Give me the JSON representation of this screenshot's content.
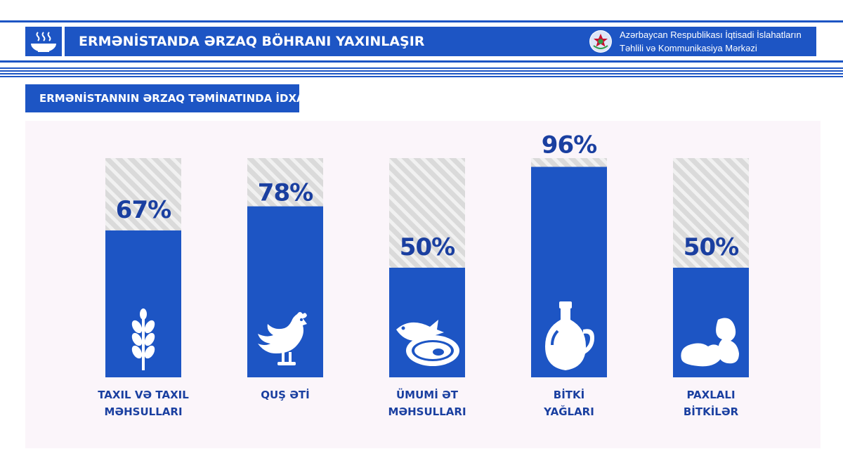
{
  "header": {
    "title": "ERMƏNİSTANDA ƏRZAQ BÖHRANI YAXINLAŞIR",
    "org_line1": "Azərbaycan Respublikası İqtisadi İslahatların",
    "org_line2": "Təhlili və Kommunikasiya Mərkəzi",
    "icon": "food-bowl-icon"
  },
  "colors": {
    "accent": "#1d55c4",
    "text": "#1a3fa0",
    "empty": "#dadada",
    "panel": "#fbf5fa"
  },
  "chart_data": {
    "type": "bar",
    "title": "ERMƏNİSTANNIN ƏRZAQ TƏMİNATINDA İDXALIN PAYI",
    "categories": [
      [
        "TAXIL VƏ TAXIL",
        "MƏHSULLARI"
      ],
      [
        "QUŞ ƏTİ"
      ],
      [
        "ÜMUMİ ƏT",
        "MƏHSULLARI"
      ],
      [
        "BİTKİ",
        "YAĞLARI"
      ],
      [
        "PAXLALI",
        "BİTKİLƏR"
      ]
    ],
    "values": [
      67,
      78,
      50,
      96,
      50
    ],
    "value_labels": [
      "67%",
      "78%",
      "50%",
      "96%",
      "50%"
    ],
    "icons": [
      "wheat-icon",
      "chicken-icon",
      "meat-fish-icon",
      "oil-bottle-icon",
      "beans-icon"
    ],
    "ylim": [
      0,
      100
    ],
    "unit": "%"
  }
}
